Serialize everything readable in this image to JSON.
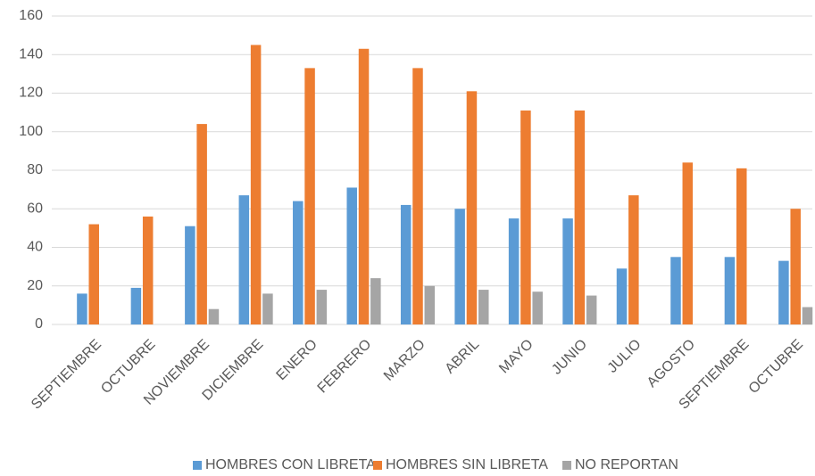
{
  "chart_data": {
    "type": "bar",
    "categories": [
      "SEPTIEMBRE",
      "OCTUBRE",
      "NOVIEMBRE",
      "DICIEMBRE",
      "ENERO",
      "FEBRERO",
      "MARZO",
      "ABRIL",
      "MAYO",
      "JUNIO",
      "JULIO",
      "AGOSTO",
      "SEPTIEMBRE",
      "OCTUBRE"
    ],
    "series": [
      {
        "name": "HOMBRES CON LIBRETA",
        "color": "#5b9bd5",
        "values": [
          16,
          19,
          51,
          67,
          64,
          71,
          62,
          60,
          55,
          55,
          29,
          35,
          35,
          33
        ]
      },
      {
        "name": "HOMBRES SIN LIBRETA",
        "color": "#ed7d31",
        "values": [
          52,
          56,
          104,
          145,
          133,
          143,
          133,
          121,
          111,
          111,
          67,
          84,
          81,
          60
        ]
      },
      {
        "name": "NO REPORTAN",
        "color": "#a5a5a5",
        "values": [
          0,
          0,
          8,
          16,
          18,
          24,
          20,
          18,
          17,
          15,
          0,
          0,
          0,
          9
        ]
      }
    ],
    "ylim": [
      0,
      160
    ],
    "yticks": [
      0,
      20,
      40,
      60,
      80,
      100,
      120,
      140,
      160
    ],
    "grid": true,
    "legend": "bottom"
  }
}
